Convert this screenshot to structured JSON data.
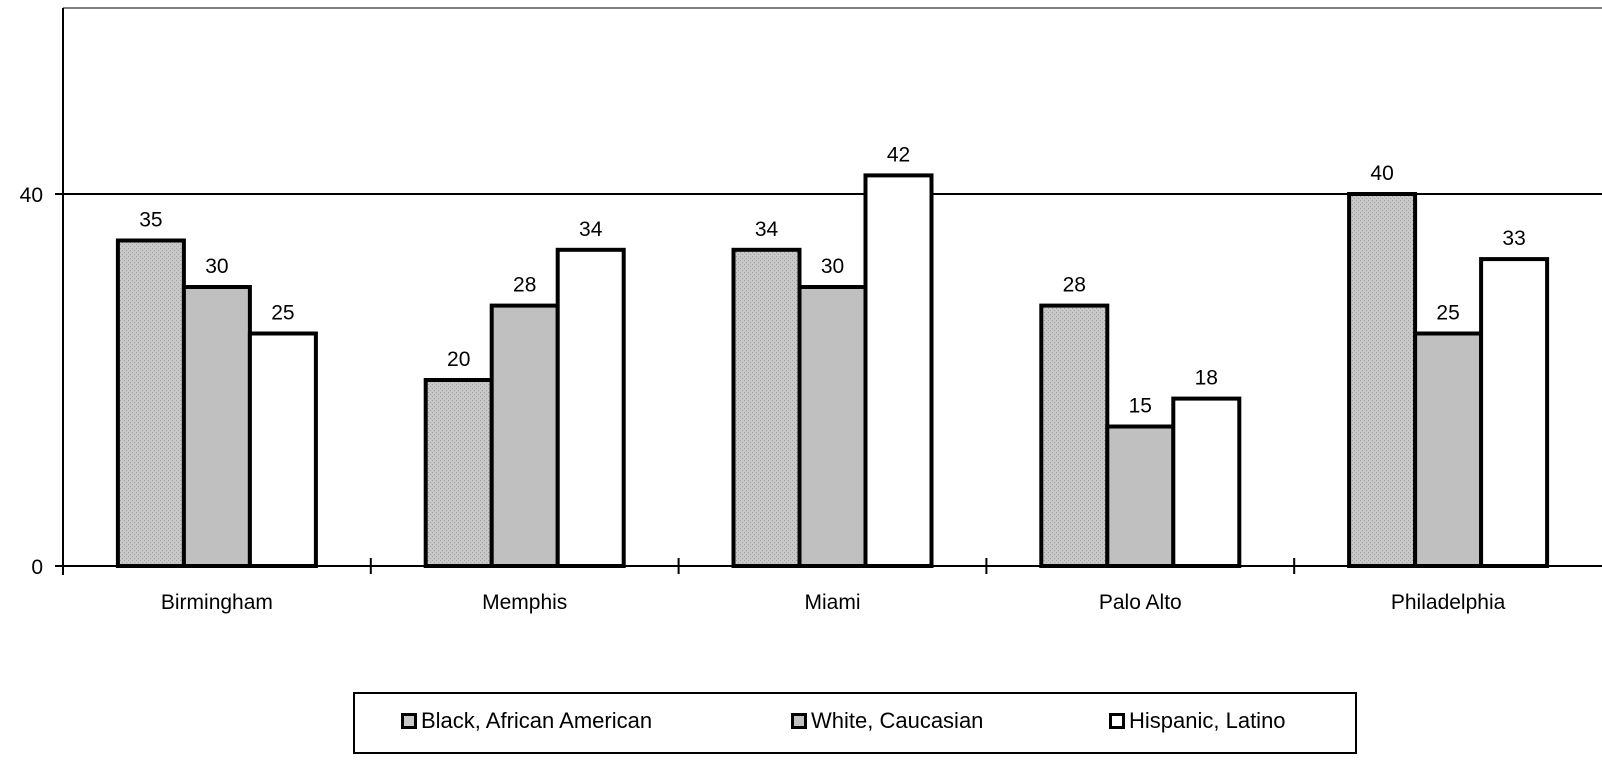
{
  "chart_data": {
    "type": "bar",
    "title": "",
    "xlabel": "",
    "ylabel": "",
    "categories": [
      "Birmingham",
      "Memphis",
      "Miami",
      "Palo Alto",
      "Philadelphia"
    ],
    "series": [
      {
        "name": "Black, African American",
        "values": [
          35,
          20,
          34,
          28,
          40
        ],
        "color": "#c8c8c8",
        "pattern": "dotted"
      },
      {
        "name": "White, Caucasian",
        "values": [
          30,
          28,
          30,
          15,
          25
        ],
        "color": "#c0c0c0"
      },
      {
        "name": "Hispanic, Latino",
        "values": [
          25,
          34,
          42,
          18,
          33
        ],
        "color": "#ffffff"
      }
    ],
    "ylim": [
      0,
      60
    ],
    "yticks": [
      0,
      40
    ],
    "gridlines": [
      40
    ],
    "data_labels": true,
    "legend_position": "bottom"
  }
}
